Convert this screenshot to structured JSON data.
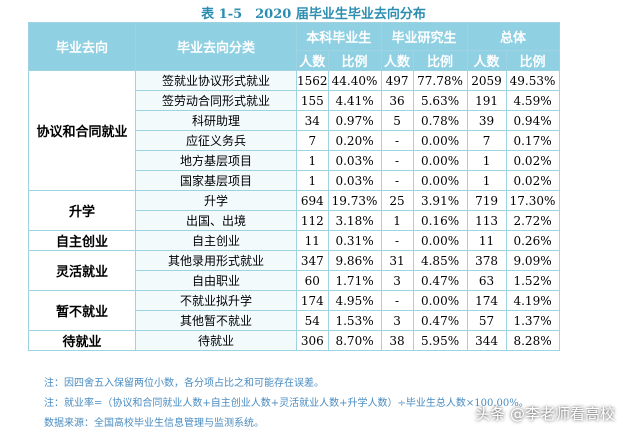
{
  "title": "表 1-5　2020 届毕业生毕业去向分布",
  "table": {
    "header": {
      "destination": "毕业去向",
      "category": "毕业去向分类",
      "groups": [
        "本科毕业生",
        "毕业研究生",
        "总体"
      ],
      "sub": [
        "人数",
        "比例",
        "人数",
        "比例",
        "人数",
        "比例"
      ]
    },
    "groups": [
      {
        "name": "协议和合同就业",
        "rows": [
          [
            "签就业协议形式就业",
            "1562",
            "44.40%",
            "497",
            "77.78%",
            "2059",
            "49.53%"
          ],
          [
            "签劳动合同形式就业",
            "155",
            "4.41%",
            "36",
            "5.63%",
            "191",
            "4.59%"
          ],
          [
            "科研助理",
            "34",
            "0.97%",
            "5",
            "0.78%",
            "39",
            "0.94%"
          ],
          [
            "应征义务兵",
            "7",
            "0.20%",
            "-",
            "0.00%",
            "7",
            "0.17%"
          ],
          [
            "地方基层项目",
            "1",
            "0.03%",
            "-",
            "0.00%",
            "1",
            "0.02%"
          ],
          [
            "国家基层项目",
            "1",
            "0.03%",
            "-",
            "0.00%",
            "1",
            "0.02%"
          ]
        ]
      },
      {
        "name": "升学",
        "rows": [
          [
            "升学",
            "694",
            "19.73%",
            "25",
            "3.91%",
            "719",
            "17.30%"
          ],
          [
            "出国、出境",
            "112",
            "3.18%",
            "1",
            "0.16%",
            "113",
            "2.72%"
          ]
        ]
      },
      {
        "name": "自主创业",
        "rows": [
          [
            "自主创业",
            "11",
            "0.31%",
            "-",
            "0.00%",
            "11",
            "0.26%"
          ]
        ]
      },
      {
        "name": "灵活就业",
        "rows": [
          [
            "其他录用形式就业",
            "347",
            "9.86%",
            "31",
            "4.85%",
            "378",
            "9.09%"
          ],
          [
            "自由职业",
            "60",
            "1.71%",
            "3",
            "0.47%",
            "63",
            "1.52%"
          ]
        ]
      },
      {
        "name": "暂不就业",
        "rows": [
          [
            "不就业拟升学",
            "174",
            "4.95%",
            "-",
            "0.00%",
            "174",
            "4.19%"
          ],
          [
            "其他暂不就业",
            "54",
            "1.53%",
            "3",
            "0.47%",
            "57",
            "1.37%"
          ]
        ]
      },
      {
        "name": "待就业",
        "rows": [
          [
            "待就业",
            "306",
            "8.70%",
            "38",
            "5.95%",
            "344",
            "8.28%"
          ]
        ]
      }
    ]
  },
  "notes": [
    "注：因四舍五入保留两位小数，各分项占比之和可能存在误差。",
    "注：就业率=（协议和合同就业人数+自主创业人数+灵活就业人数+升学人数）÷毕业生总人数×100.00%。",
    "数据来源：全国高校毕业生信息管理与监测系统。"
  ],
  "watermark": "头条 @李老师看高校"
}
